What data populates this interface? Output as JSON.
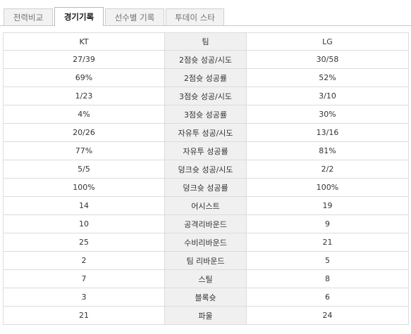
{
  "tabs": [
    {
      "label": "전력비교",
      "active": false
    },
    {
      "label": "경기기록",
      "active": true
    },
    {
      "label": "선수별 기록",
      "active": false
    },
    {
      "label": "투데이 스타",
      "active": false
    }
  ],
  "table": {
    "headers": {
      "left": "KT",
      "middle": "팀",
      "right": "LG"
    },
    "rows": [
      {
        "left": "27/39",
        "stat": "2점슛 성공/시도",
        "right": "30/58"
      },
      {
        "left": "69%",
        "stat": "2점슛 성공률",
        "right": "52%"
      },
      {
        "left": "1/23",
        "stat": "3점슛 성공/시도",
        "right": "3/10"
      },
      {
        "left": "4%",
        "stat": "3점슛 성공률",
        "right": "30%"
      },
      {
        "left": "20/26",
        "stat": "자유투 성공/시도",
        "right": "13/16"
      },
      {
        "left": "77%",
        "stat": "자유투 성공률",
        "right": "81%"
      },
      {
        "left": "5/5",
        "stat": "덩크슛 성공/시도",
        "right": "2/2"
      },
      {
        "left": "100%",
        "stat": "덩크슛 성공률",
        "right": "100%"
      },
      {
        "left": "14",
        "stat": "어시스트",
        "right": "19"
      },
      {
        "left": "10",
        "stat": "공격리바운드",
        "right": "9"
      },
      {
        "left": "25",
        "stat": "수비리바운드",
        "right": "21"
      },
      {
        "left": "2",
        "stat": "팀 리바운드",
        "right": "5"
      },
      {
        "left": "7",
        "stat": "스틸",
        "right": "8"
      },
      {
        "left": "3",
        "stat": "블록슛",
        "right": "6"
      },
      {
        "left": "21",
        "stat": "파울",
        "right": "24"
      }
    ]
  }
}
